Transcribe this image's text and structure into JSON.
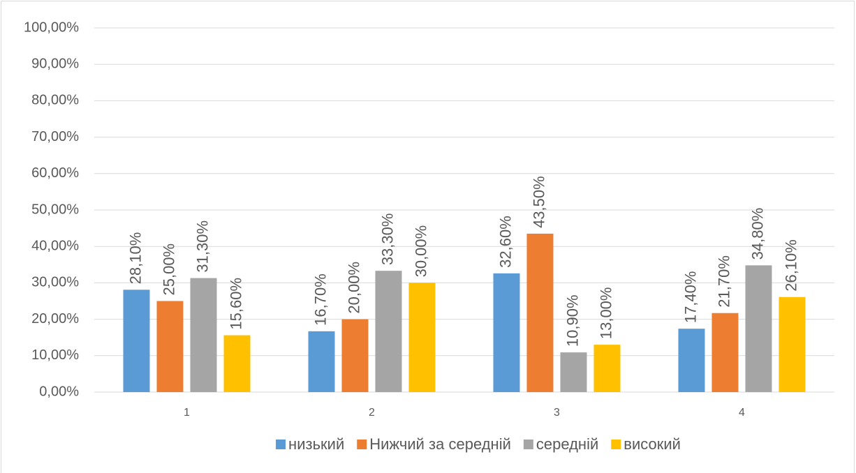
{
  "chart_data": {
    "type": "bar",
    "categories": [
      "1",
      "2",
      "3",
      "4"
    ],
    "series": [
      {
        "name": "низький",
        "color": "#5b9bd5",
        "values": [
          28.1,
          16.7,
          32.6,
          17.4
        ],
        "value_labels": [
          "28,10%",
          "16,70%",
          "32,60%",
          "17,40%"
        ]
      },
      {
        "name": "Нижчий за середній",
        "color": "#ed7d31",
        "values": [
          25.0,
          20.0,
          43.5,
          21.7
        ],
        "value_labels": [
          "25,00%",
          "20,00%",
          "43,50%",
          "21,70%"
        ]
      },
      {
        "name": "середній",
        "color": "#a5a5a5",
        "values": [
          31.3,
          33.3,
          10.9,
          34.8
        ],
        "value_labels": [
          "31,30%",
          "33,30%",
          "10,90%",
          "34,80%"
        ]
      },
      {
        "name": "високий",
        "color": "#ffc000",
        "values": [
          15.6,
          30.0,
          13.0,
          26.1
        ],
        "value_labels": [
          "15,60%",
          "30,00%",
          "13,00%",
          "26,10%"
        ]
      }
    ],
    "ylim": [
      0,
      100
    ],
    "yticks": [
      {
        "value": 0,
        "label": "0,00%"
      },
      {
        "value": 10,
        "label": "10,00%"
      },
      {
        "value": 20,
        "label": "20,00%"
      },
      {
        "value": 30,
        "label": "30,00%"
      },
      {
        "value": 40,
        "label": "40,00%"
      },
      {
        "value": 50,
        "label": "50,00%"
      },
      {
        "value": 60,
        "label": "60,00%"
      },
      {
        "value": 70,
        "label": "70,00%"
      },
      {
        "value": 80,
        "label": "80,00%"
      },
      {
        "value": 90,
        "label": "90,00%"
      },
      {
        "value": 100,
        "label": "100,00%"
      }
    ],
    "grid": true,
    "legend": "bottom"
  }
}
